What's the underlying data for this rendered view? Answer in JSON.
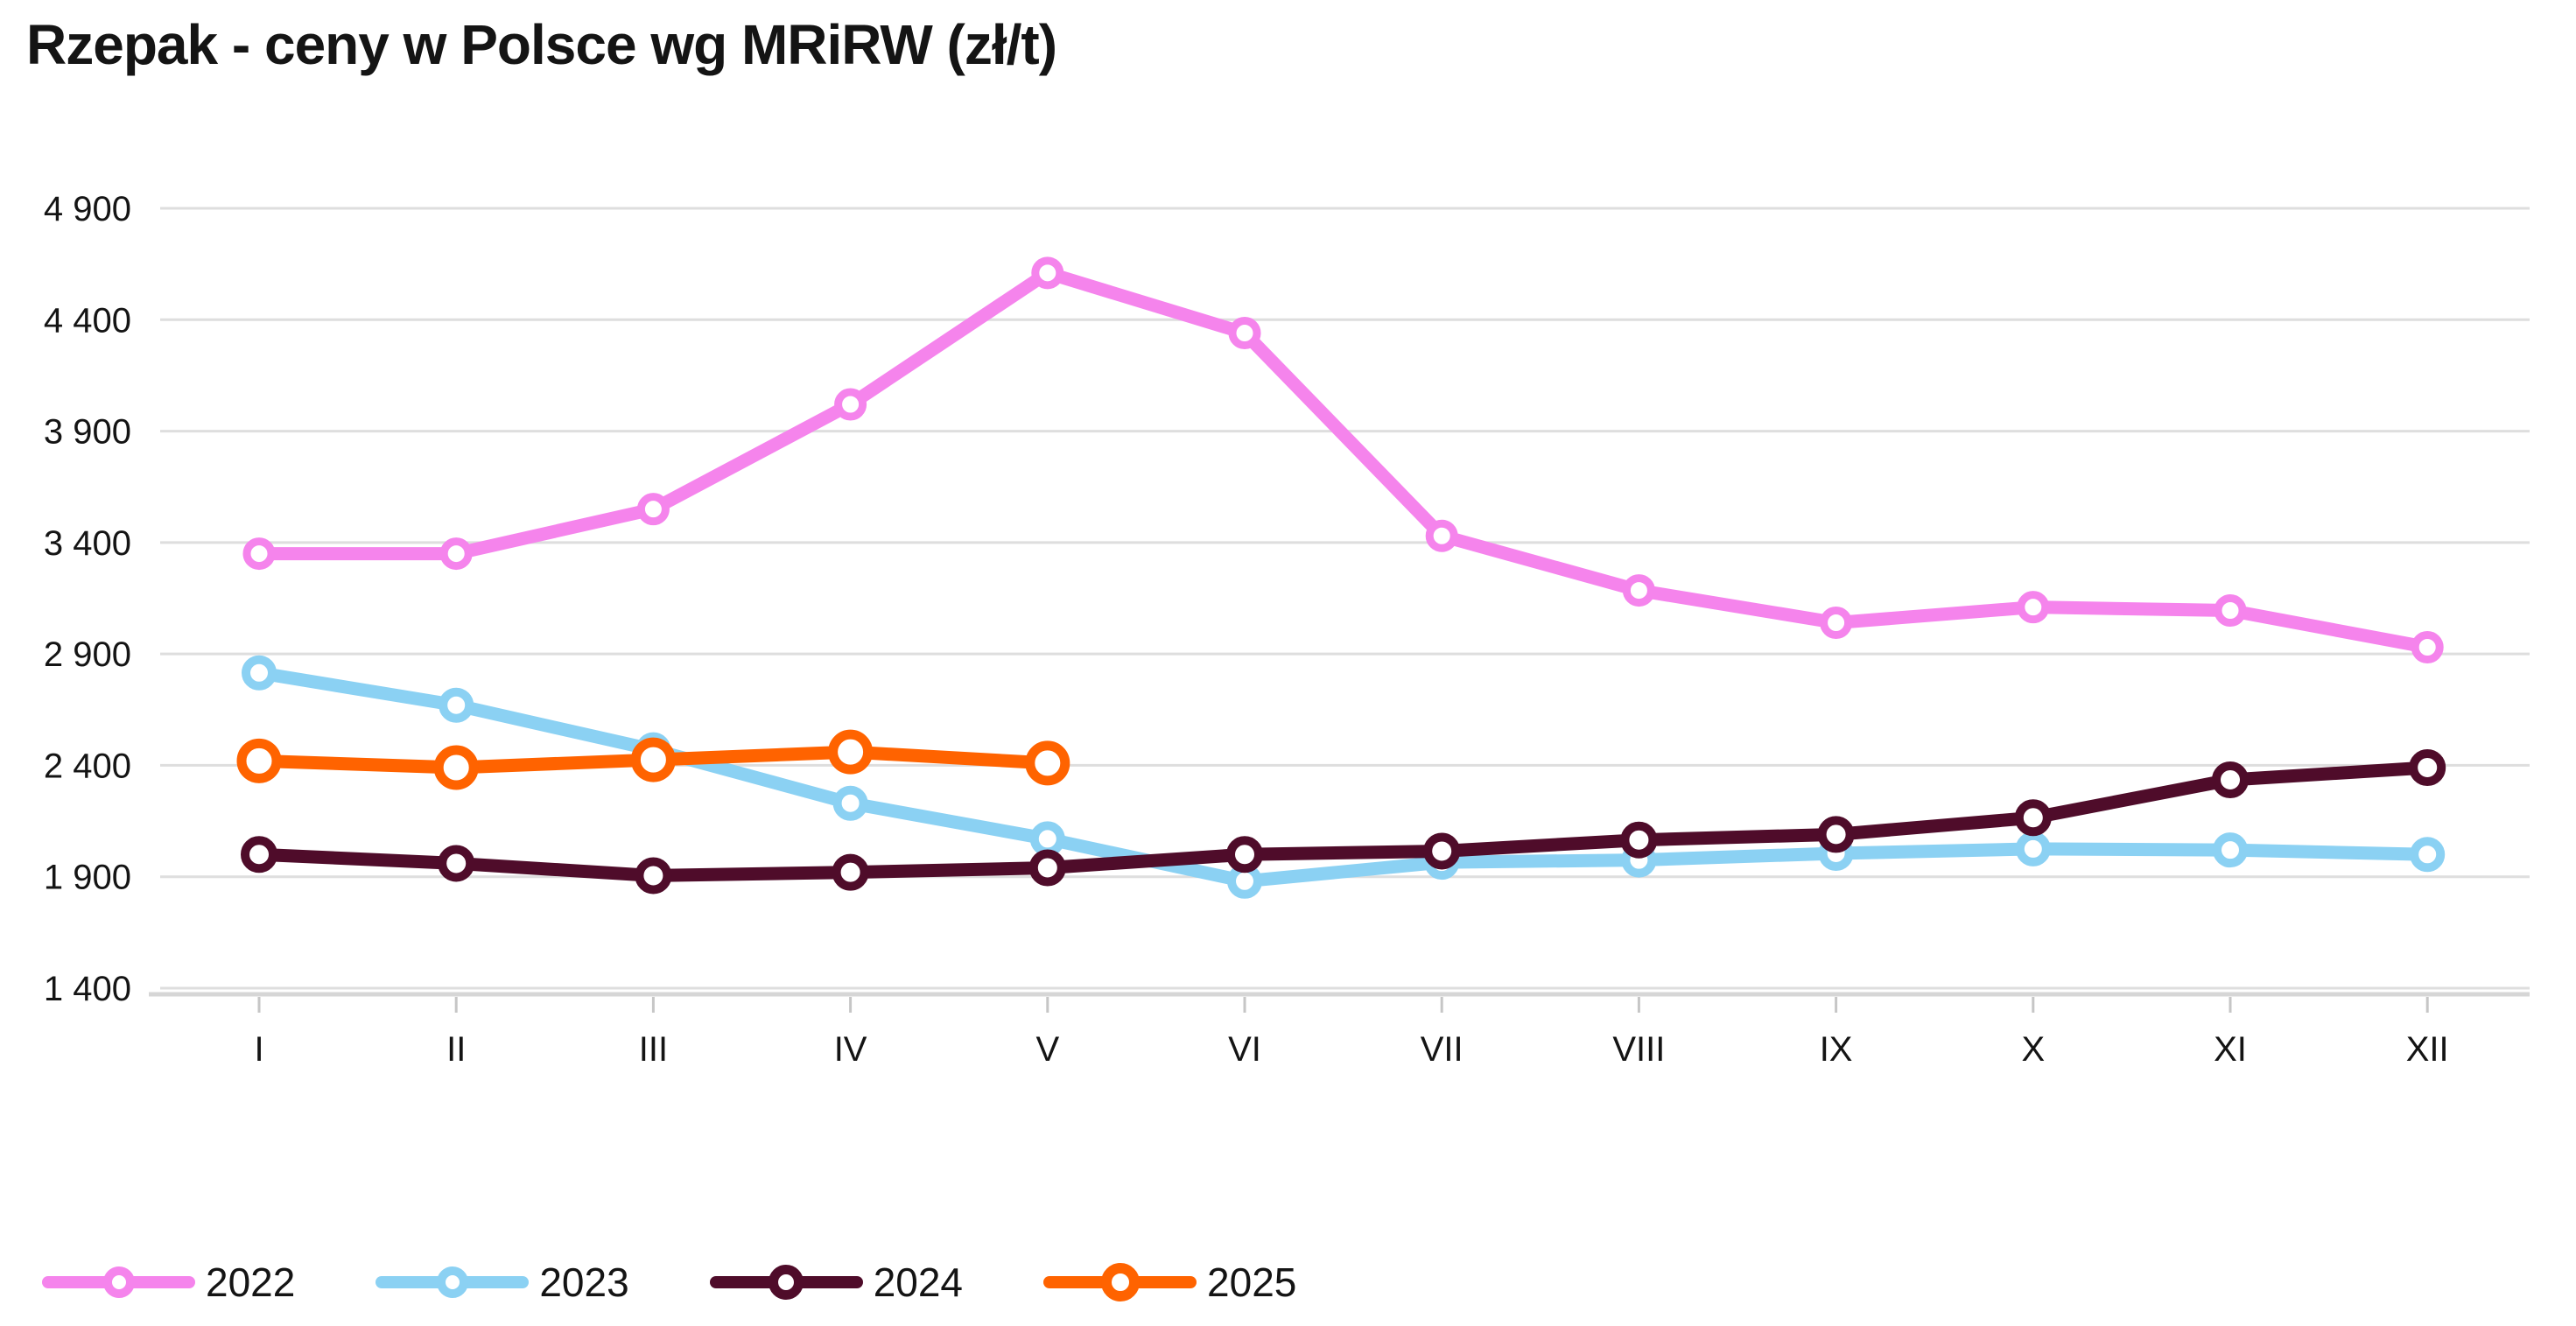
{
  "title": "Rzepak - ceny w Polsce wg MRiRW (zł/t)",
  "colors": {
    "series_2022": "#F584EC",
    "series_2023": "#8BD1F3",
    "series_2024": "#4F0C2A",
    "series_2025": "#FF6300",
    "gridline": "#DEDEDE",
    "axis_line": "#D6D6D6",
    "tick_mark": "#C6C6C6",
    "text": "#141414",
    "background": "#FFFFFF"
  },
  "chart_data": {
    "type": "line",
    "title": "Rzepak - ceny w Polsce wg MRiRW (zł/t)",
    "xlabel": "",
    "ylabel": "",
    "categories": [
      "I",
      "II",
      "III",
      "IV",
      "V",
      "VI",
      "VII",
      "VIII",
      "IX",
      "X",
      "XI",
      "XII"
    ],
    "y_ticks": [
      4900,
      4400,
      3900,
      3400,
      2900,
      2400,
      1900,
      1400
    ],
    "y_tick_labels": [
      "4 900",
      "4 400",
      "3 900",
      "3 400",
      "2 900",
      "2 400",
      "1 900",
      "1 400"
    ],
    "ylim": [
      1400,
      4900
    ],
    "grid": "horizontal",
    "legend_position": "bottom-left",
    "series": [
      {
        "name": "2022",
        "color": "#F584EC",
        "values": [
          3350,
          3350,
          3550,
          4020,
          4610,
          4340,
          3430,
          3185,
          3040,
          3110,
          3095,
          2930
        ]
      },
      {
        "name": "2023",
        "color": "#8BD1F3",
        "values": [
          2815,
          2670,
          2470,
          2230,
          2070,
          1880,
          1965,
          1975,
          2005,
          2025,
          2020,
          2000
        ]
      },
      {
        "name": "2024",
        "color": "#4F0C2A",
        "values": [
          2000,
          1960,
          1905,
          1920,
          1940,
          2000,
          2015,
          2065,
          2090,
          2165,
          2335,
          2390
        ]
      },
      {
        "name": "2025",
        "color": "#FF6300",
        "values": [
          2420,
          2390,
          2425,
          2460,
          2410
        ]
      }
    ]
  }
}
